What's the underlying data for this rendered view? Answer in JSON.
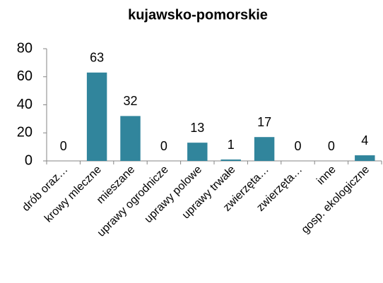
{
  "chart_data": {
    "type": "bar",
    "title": "kujawsko-pomorskie",
    "categories": [
      "drób oraz…",
      "krowy mleczne",
      "mieszane",
      "uprawy ogrodnicze",
      "uprawy polowe",
      "uprawy trwałe",
      "zwierzęta…",
      "zwierzęta…",
      "inne",
      "gosp. ekologiczne"
    ],
    "values": [
      0,
      63,
      32,
      0,
      13,
      1,
      17,
      0,
      0,
      4
    ],
    "color": "#31859c",
    "ylim": [
      0,
      80
    ],
    "yticks": [
      0,
      20,
      40,
      60,
      80
    ],
    "grid": false
  }
}
